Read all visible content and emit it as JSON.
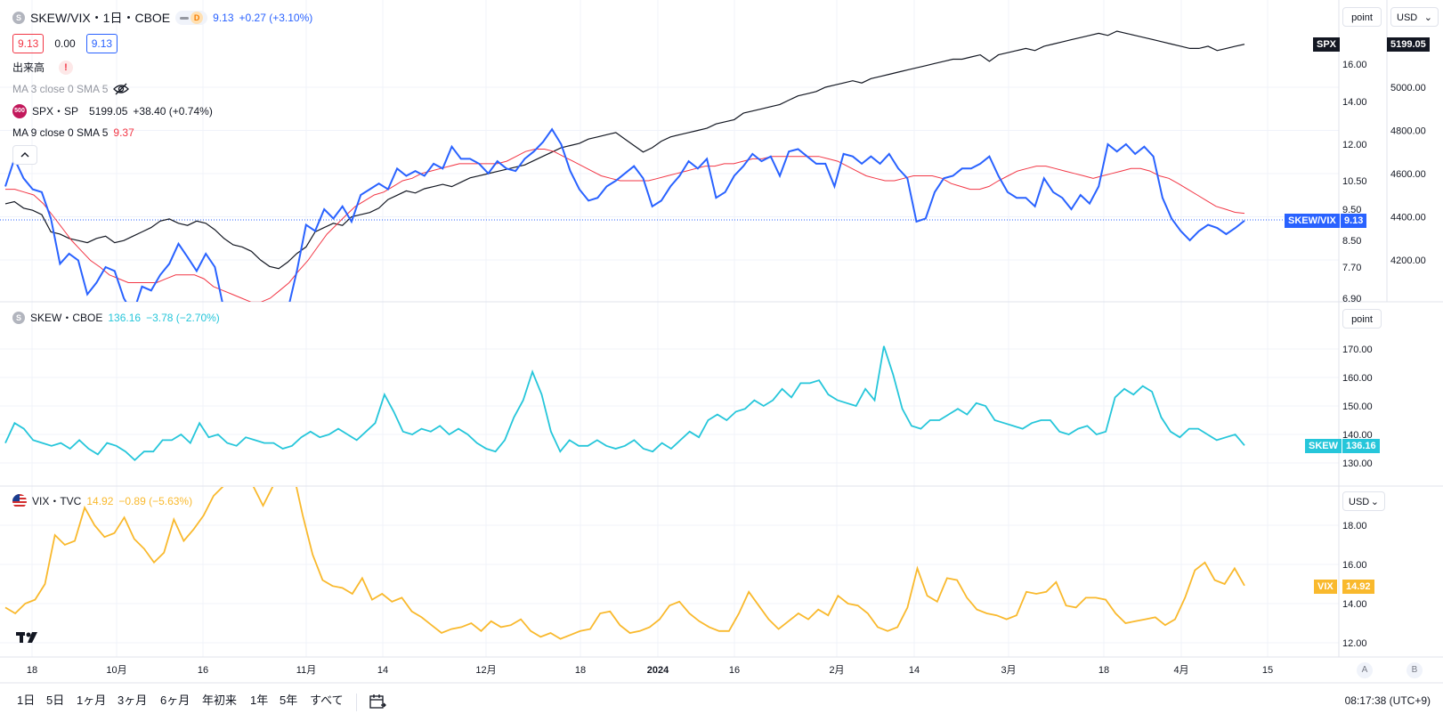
{
  "main_legend": {
    "symbol": "SKEW/VIX・1日・CBOE",
    "symbol_icon": "S",
    "interval_badge": "D",
    "last": "9.13",
    "change": "+0.27 (+3.10%)",
    "bid": "9.13",
    "spread": "0.00",
    "ask": "9.13",
    "volume_label": "出来高",
    "ma3": "MA 3 close 0 SMA 5",
    "spx_icon": "500",
    "spx_label": "SPX・SP",
    "spx_value": "5199.05",
    "spx_change": "+38.40 (+0.74%)",
    "ma9": "MA 9 close 0 SMA 5",
    "ma9_value": "9.37"
  },
  "skew_legend": {
    "icon": "S",
    "symbol": "SKEW・CBOE",
    "value": "136.16",
    "change": "−3.78 (−2.70%)"
  },
  "vix_legend": {
    "symbol": "VIX・TVC",
    "value": "14.92",
    "change": "−0.89 (−5.63%)"
  },
  "controls": {
    "scale_main": "point",
    "currency_main": "USD",
    "scale_skew": "point",
    "currency_vix": "USD",
    "btn_a": "A",
    "btn_b": "B"
  },
  "bottom": {
    "ranges": [
      "1日",
      "5日",
      "1ヶ月",
      "3ヶ月",
      "6ヶ月",
      "年初来",
      "1年",
      "5年",
      "すべて"
    ],
    "clock": "08:17:38 (UTC+9)"
  },
  "colors": {
    "ratio": "#2962ff",
    "ma9": "#f23645",
    "spx": "#131722",
    "skew": "#26c6da",
    "vix": "#f9b92d",
    "grid": "#f0f3fa"
  },
  "chart_data": [
    {
      "type": "line",
      "pane": "main",
      "x_axis_labels": [
        "18",
        "10月",
        "16",
        "11月",
        "14",
        "12月",
        "18",
        "2024",
        "16",
        "2月",
        "14",
        "3月",
        "18",
        "4月",
        "15"
      ],
      "y_left_ticks": [
        6.9,
        7.7,
        8.5,
        9.5,
        10.5,
        12.0,
        14.0,
        16.0
      ],
      "y_right_ticks": [
        4200.0,
        4400.0,
        4600.0,
        4800.0,
        5000.0
      ],
      "series": [
        {
          "name": "SKEW/VIX",
          "axis": "left",
          "last_label": "9.13",
          "values": [
            10.3,
            11.4,
            10.6,
            10.2,
            10.1,
            9.2,
            7.8,
            8.1,
            7.9,
            7.0,
            7.3,
            7.7,
            7.6,
            6.9,
            6.5,
            7.2,
            7.1,
            7.5,
            7.8,
            8.4,
            8.0,
            7.6,
            8.1,
            7.7,
            6.6,
            5.8,
            6.3,
            6.1,
            6.8,
            5.5,
            6.0,
            6.6,
            7.6,
            9.0,
            8.8,
            9.5,
            9.2,
            9.6,
            9.1,
            10.0,
            10.2,
            10.4,
            10.2,
            11.0,
            10.7,
            10.9,
            10.7,
            11.2,
            11.0,
            11.9,
            11.4,
            11.4,
            11.2,
            10.8,
            11.3,
            11.0,
            10.9,
            11.4,
            11.7,
            12.1,
            12.7,
            12.0,
            10.9,
            10.2,
            9.8,
            9.9,
            10.3,
            10.5,
            10.8,
            11.1,
            10.6,
            9.6,
            9.8,
            10.3,
            10.7,
            11.3,
            11.0,
            11.4,
            9.9,
            10.1,
            10.7,
            11.1,
            11.6,
            11.3,
            11.5,
            10.7,
            11.7,
            11.8,
            11.5,
            11.2,
            11.2,
            10.3,
            11.6,
            11.5,
            11.2,
            11.5,
            11.2,
            11.6,
            11.0,
            10.6,
            9.1,
            9.2,
            10.1,
            10.6,
            10.7,
            11.0,
            11.0,
            11.2,
            11.5,
            10.7,
            10.1,
            9.9,
            9.9,
            9.6,
            10.6,
            10.1,
            9.9,
            9.5,
            10.0,
            9.7,
            10.3,
            12.0,
            11.7,
            12.0,
            11.6,
            11.9,
            11.5,
            9.9,
            9.2,
            8.8,
            8.5,
            8.8,
            9.0,
            8.9,
            8.7,
            8.9,
            9.13
          ]
        },
        {
          "name": "SPX",
          "axis": "right",
          "last_label": "5199.05",
          "values": [
            4460,
            4470,
            4440,
            4430,
            4410,
            4330,
            4320,
            4300,
            4290,
            4280,
            4300,
            4310,
            4280,
            4290,
            4310,
            4330,
            4350,
            4380,
            4390,
            4370,
            4360,
            4380,
            4370,
            4340,
            4300,
            4270,
            4260,
            4240,
            4200,
            4170,
            4160,
            4190,
            4230,
            4260,
            4330,
            4350,
            4370,
            4360,
            4400,
            4410,
            4420,
            4440,
            4480,
            4500,
            4520,
            4510,
            4530,
            4540,
            4550,
            4540,
            4560,
            4580,
            4590,
            4600,
            4610,
            4620,
            4630,
            4640,
            4660,
            4680,
            4700,
            4720,
            4730,
            4740,
            4760,
            4770,
            4780,
            4790,
            4760,
            4730,
            4700,
            4720,
            4750,
            4770,
            4780,
            4790,
            4800,
            4810,
            4830,
            4840,
            4850,
            4880,
            4890,
            4900,
            4910,
            4920,
            4940,
            4960,
            4970,
            4980,
            5000,
            5010,
            5020,
            5030,
            5020,
            5040,
            5050,
            5060,
            5070,
            5080,
            5090,
            5100,
            5110,
            5120,
            5130,
            5130,
            5140,
            5150,
            5120,
            5150,
            5160,
            5170,
            5180,
            5170,
            5190,
            5200,
            5210,
            5220,
            5230,
            5240,
            5250,
            5240,
            5260,
            5250,
            5240,
            5230,
            5220,
            5210,
            5200,
            5190,
            5180,
            5180,
            5190,
            5170,
            5180,
            5190,
            5199.05
          ]
        },
        {
          "name": "MA 9",
          "axis": "left",
          "last_label": "9.37",
          "values": [
            10.2,
            10.2,
            10.1,
            10.0,
            9.7,
            9.3,
            8.9,
            8.5,
            8.2,
            7.9,
            7.7,
            7.5,
            7.4,
            7.3,
            7.3,
            7.3,
            7.3,
            7.4,
            7.5,
            7.5,
            7.5,
            7.4,
            7.2,
            7.1,
            7.0,
            6.9,
            6.8,
            6.8,
            6.9,
            7.1,
            7.3,
            7.6,
            7.9,
            8.3,
            8.7,
            9.0,
            9.3,
            9.6,
            9.8,
            10.0,
            10.1,
            10.3,
            10.5,
            10.6,
            10.8,
            10.9,
            11.0,
            11.1,
            11.2,
            11.2,
            11.2,
            11.2,
            11.2,
            11.3,
            11.5,
            11.7,
            11.8,
            11.8,
            11.7,
            11.5,
            11.3,
            11.1,
            10.9,
            10.7,
            10.6,
            10.5,
            10.5,
            10.5,
            10.5,
            10.6,
            10.7,
            10.8,
            10.9,
            11.0,
            11.1,
            11.1,
            11.2,
            11.2,
            11.3,
            11.4,
            11.4,
            11.5,
            11.5,
            11.5,
            11.5,
            11.5,
            11.5,
            11.4,
            11.3,
            11.1,
            10.9,
            10.7,
            10.6,
            10.5,
            10.5,
            10.6,
            10.7,
            10.7,
            10.7,
            10.6,
            10.4,
            10.3,
            10.2,
            10.2,
            10.3,
            10.5,
            10.7,
            10.9,
            11.0,
            11.1,
            11.1,
            11.0,
            10.9,
            10.8,
            10.7,
            10.6,
            10.7,
            10.8,
            10.9,
            11.0,
            11.0,
            10.9,
            10.7,
            10.6,
            10.4,
            10.2,
            10.0,
            9.8,
            9.6,
            9.5,
            9.4,
            9.37
          ]
        }
      ]
    },
    {
      "type": "line",
      "pane": "skew",
      "y_ticks": [
        130.0,
        140.0,
        150.0,
        160.0,
        170.0
      ],
      "series": [
        {
          "name": "SKEW",
          "last_label": "136.16",
          "values": [
            137,
            144,
            142,
            138,
            137,
            136,
            137,
            135,
            138,
            135,
            133,
            137,
            136,
            134,
            131,
            134,
            134,
            138,
            138,
            140,
            137,
            144,
            139,
            140,
            137,
            136,
            139,
            138,
            137,
            137,
            135,
            136,
            139,
            141,
            139,
            140,
            142,
            140,
            138,
            141,
            144,
            154,
            148,
            141,
            140,
            142,
            141,
            143,
            140,
            142,
            140,
            137,
            135,
            134,
            138,
            146,
            152,
            162,
            154,
            141,
            134,
            138,
            136,
            136,
            138,
            136,
            135,
            136,
            138,
            135,
            134,
            137,
            135,
            138,
            141,
            139,
            145,
            147,
            145,
            148,
            149,
            152,
            150,
            152,
            156,
            153,
            158,
            158,
            159,
            154,
            152,
            151,
            150,
            156,
            152,
            171,
            161,
            149,
            143,
            142,
            145,
            145,
            147,
            149,
            147,
            151,
            150,
            145,
            144,
            143,
            142,
            144,
            145,
            145,
            141,
            140,
            142,
            143,
            140,
            141,
            153,
            156,
            154,
            157,
            155,
            146,
            141,
            139,
            142,
            142,
            140,
            138,
            139,
            140,
            136.16
          ]
        }
      ]
    },
    {
      "type": "line",
      "pane": "vix",
      "y_ticks": [
        12.0,
        14.0,
        16.0,
        18.0
      ],
      "series": [
        {
          "name": "VIX",
          "last_label": "14.92",
          "values": [
            13.8,
            13.5,
            14.0,
            14.2,
            15.0,
            17.5,
            17.0,
            17.2,
            18.9,
            18.0,
            17.4,
            17.6,
            18.4,
            17.3,
            16.8,
            16.1,
            16.6,
            18.3,
            17.2,
            17.8,
            18.5,
            19.5,
            20.0,
            21.0,
            21.5,
            20.0,
            19.0,
            20.0,
            21.2,
            20.8,
            18.5,
            16.5,
            15.2,
            14.9,
            14.8,
            14.5,
            15.3,
            14.2,
            14.5,
            14.1,
            14.3,
            13.6,
            13.3,
            12.9,
            12.5,
            12.7,
            12.8,
            13.0,
            12.6,
            13.1,
            12.8,
            12.9,
            13.2,
            12.6,
            12.3,
            12.5,
            12.2,
            12.4,
            12.6,
            12.7,
            13.5,
            13.6,
            12.9,
            12.5,
            12.6,
            12.8,
            13.2,
            13.9,
            14.1,
            13.5,
            13.1,
            12.8,
            12.6,
            12.6,
            13.5,
            14.6,
            13.9,
            13.2,
            12.7,
            13.1,
            13.5,
            13.2,
            13.7,
            13.4,
            14.4,
            14.0,
            13.9,
            13.5,
            12.8,
            12.6,
            12.8,
            13.8,
            15.8,
            14.4,
            14.1,
            15.3,
            15.2,
            14.3,
            13.7,
            13.5,
            13.4,
            13.2,
            13.4,
            14.6,
            14.5,
            14.6,
            15.1,
            13.9,
            13.8,
            14.3,
            14.3,
            14.2,
            13.5,
            13.0,
            13.1,
            13.2,
            13.3,
            12.9,
            13.2,
            14.3,
            15.7,
            16.1,
            15.2,
            15.0,
            15.8,
            14.92
          ]
        }
      ]
    }
  ]
}
